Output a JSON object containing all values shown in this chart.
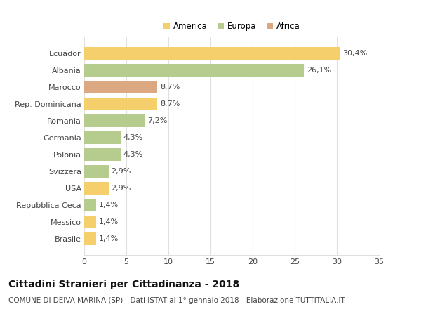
{
  "categories": [
    "Brasile",
    "Messico",
    "Repubblica Ceca",
    "USA",
    "Svizzera",
    "Polonia",
    "Germania",
    "Romania",
    "Rep. Dominicana",
    "Marocco",
    "Albania",
    "Ecuador"
  ],
  "values": [
    1.4,
    1.4,
    1.4,
    2.9,
    2.9,
    4.3,
    4.3,
    7.2,
    8.7,
    8.7,
    26.1,
    30.4
  ],
  "colors": [
    "#f5cf6b",
    "#f5cf6b",
    "#b5cc8e",
    "#f5cf6b",
    "#b5cc8e",
    "#b5cc8e",
    "#b5cc8e",
    "#b5cc8e",
    "#f5cf6b",
    "#dba882",
    "#b5cc8e",
    "#f5cf6b"
  ],
  "labels": [
    "1,4%",
    "1,4%",
    "1,4%",
    "2,9%",
    "2,9%",
    "4,3%",
    "4,3%",
    "7,2%",
    "8,7%",
    "8,7%",
    "26,1%",
    "30,4%"
  ],
  "legend": [
    {
      "label": "America",
      "color": "#f5cf6b"
    },
    {
      "label": "Europa",
      "color": "#b5cc8e"
    },
    {
      "label": "Africa",
      "color": "#dba882"
    }
  ],
  "title": "Cittadini Stranieri per Cittadinanza - 2018",
  "subtitle": "COMUNE DI DEIVA MARINA (SP) - Dati ISTAT al 1° gennaio 2018 - Elaborazione TUTTITALIA.IT",
  "xlim": [
    0,
    35
  ],
  "xticks": [
    0,
    5,
    10,
    15,
    20,
    25,
    30,
    35
  ],
  "background_color": "#ffffff",
  "bar_height": 0.75,
  "grid_color": "#e0e0e0",
  "title_fontsize": 10,
  "subtitle_fontsize": 7.5,
  "tick_fontsize": 8,
  "label_fontsize": 8,
  "legend_fontsize": 8.5
}
